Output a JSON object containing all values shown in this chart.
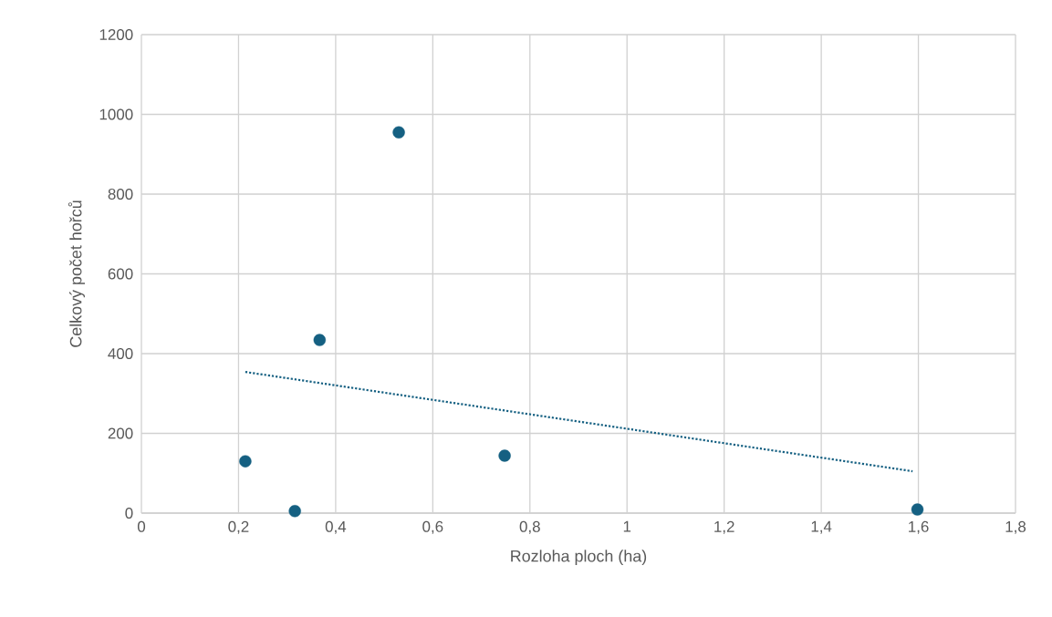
{
  "chart_data": {
    "type": "scatter",
    "xlabel": "Rozloha ploch (ha)",
    "ylabel": "Celkový počet hořců",
    "series": [
      {
        "color": "#156082",
        "marker": "circle",
        "x": [
          0.214,
          0.316,
          0.367,
          0.53,
          0.748,
          1.598
        ],
        "values": [
          130,
          5,
          434,
          955,
          144,
          9
        ]
      },
      {
        "type": "line",
        "color": "#156082",
        "marker": "none",
        "line_style": "dotted",
        "x": [
          0.214,
          1.588
        ],
        "values": [
          354,
          105
        ]
      }
    ],
    "xlim": [
      0,
      1.8
    ],
    "xticks": [
      0,
      {
        "value": 0.2,
        "label": "0,2"
      },
      {
        "value": 0.4,
        "label": "0,4"
      },
      {
        "value": 0.6,
        "label": "0,6"
      },
      {
        "value": 0.8,
        "label": "0,8"
      },
      1,
      {
        "value": 1.2,
        "label": "1,2"
      },
      {
        "value": 1.4,
        "label": "1,4"
      },
      {
        "value": 1.6,
        "label": "1,6"
      },
      {
        "value": 1.8,
        "label": "1,8"
      }
    ],
    "ylim": [
      0,
      1200
    ],
    "yticks": [
      0,
      200,
      400,
      600,
      800,
      1000,
      1200
    ],
    "grid": true
  }
}
